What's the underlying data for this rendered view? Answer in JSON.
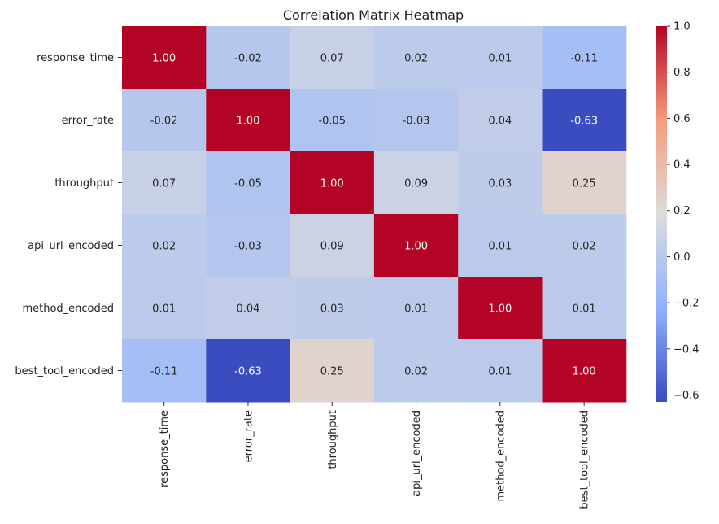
{
  "chart_data": {
    "type": "heatmap",
    "title": "Correlation Matrix Heatmap",
    "xlabel": "",
    "ylabel": "",
    "x_labels": [
      "response_time",
      "error_rate",
      "throughput",
      "api_url_encoded",
      "method_encoded",
      "best_tool_encoded"
    ],
    "y_labels": [
      "response_time",
      "error_rate",
      "throughput",
      "api_url_encoded",
      "method_encoded",
      "best_tool_encoded"
    ],
    "values": [
      [
        1.0,
        -0.02,
        0.07,
        0.02,
        0.01,
        -0.11
      ],
      [
        -0.02,
        1.0,
        -0.05,
        -0.03,
        0.04,
        -0.63
      ],
      [
        0.07,
        -0.05,
        1.0,
        0.09,
        0.03,
        0.25
      ],
      [
        0.02,
        -0.03,
        0.09,
        1.0,
        0.01,
        0.02
      ],
      [
        0.01,
        0.04,
        0.03,
        0.01,
        1.0,
        0.01
      ],
      [
        -0.11,
        -0.63,
        0.25,
        0.02,
        0.01,
        1.0
      ]
    ],
    "value_format": "0.00",
    "colormap": "coolwarm",
    "color_range": [
      -0.63,
      1.0
    ],
    "colorbar_ticks": [
      "1.0",
      "0.8",
      "0.6",
      "0.4",
      "0.2",
      "0.0",
      "−0.2",
      "−0.4",
      "−0.6"
    ],
    "colorbar_tick_values": [
      1.0,
      0.8,
      0.6,
      0.4,
      0.2,
      0.0,
      -0.2,
      -0.4,
      -0.6
    ],
    "grid": false,
    "legend": "colorbar-right"
  }
}
